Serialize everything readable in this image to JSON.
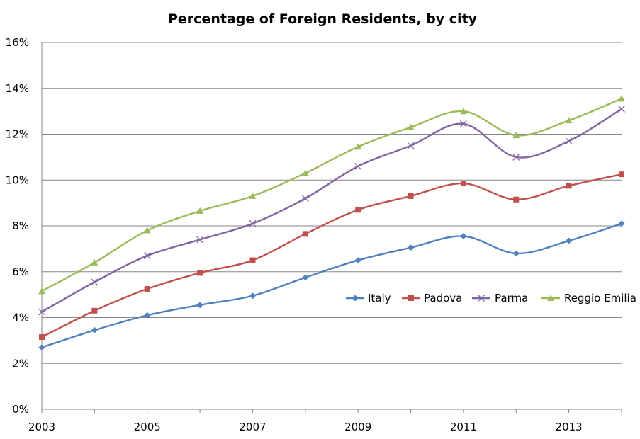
{
  "chart_data": {
    "type": "line",
    "title": "Percentage of Foreign Residents, by city",
    "xlabel": "",
    "ylabel": "",
    "x": [
      2003,
      2004,
      2005,
      2006,
      2007,
      2008,
      2009,
      2010,
      2011,
      2012,
      2013,
      2014
    ],
    "x_tick_labels": [
      "2003",
      "2005",
      "2007",
      "2009",
      "2011",
      "2013"
    ],
    "x_tick_values": [
      2003,
      2005,
      2007,
      2009,
      2011,
      2013
    ],
    "xlim": [
      2003,
      2014
    ],
    "ylim": [
      0,
      16
    ],
    "y_ticks": [
      0,
      2,
      4,
      6,
      8,
      10,
      12,
      14,
      16
    ],
    "y_tick_labels": [
      "0%",
      "2%",
      "4%",
      "6%",
      "8%",
      "10%",
      "12%",
      "14%",
      "16%"
    ],
    "grid": "horizontal",
    "legend_position": "right",
    "series": [
      {
        "name": "Italy",
        "color": "#4f81bd",
        "marker": "diamond",
        "values": [
          2.7,
          3.45,
          4.1,
          4.55,
          4.95,
          5.75,
          6.5,
          7.05,
          7.55,
          6.8,
          7.35,
          8.1
        ]
      },
      {
        "name": "Padova",
        "color": "#c0504d",
        "marker": "square",
        "values": [
          3.15,
          4.3,
          5.25,
          5.95,
          6.5,
          7.65,
          8.7,
          9.3,
          9.85,
          9.15,
          9.75,
          10.25
        ]
      },
      {
        "name": "Parma",
        "color": "#8064a2",
        "marker": "x",
        "values": [
          4.25,
          5.55,
          6.7,
          7.4,
          8.1,
          9.2,
          10.6,
          11.5,
          12.45,
          11.0,
          11.7,
          13.1
        ]
      },
      {
        "name": "Reggio Emilia",
        "color": "#9bbb59",
        "marker": "triangle",
        "values": [
          5.15,
          6.4,
          7.8,
          8.65,
          9.3,
          10.3,
          11.45,
          12.3,
          13.0,
          11.95,
          12.6,
          13.55
        ]
      }
    ]
  }
}
